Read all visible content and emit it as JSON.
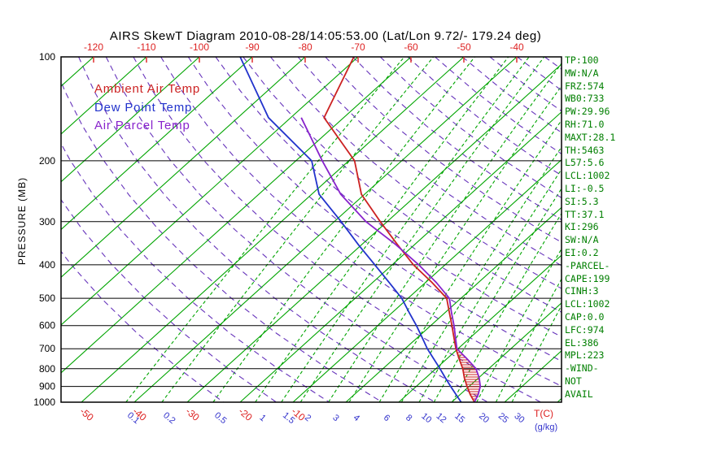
{
  "chart_data": {
    "type": "skewt-log-p",
    "title": "AIRS SkewT Diagram 2010-08-28/14:05:53.00 (Lat/Lon 9.72/- 179.24 deg)",
    "pressure_axis": {
      "label": "PRESSURE (MB)",
      "scale": "log",
      "range": [
        100,
        1000
      ],
      "ticks": [
        100,
        200,
        300,
        400,
        500,
        600,
        700,
        800,
        900,
        1000
      ]
    },
    "top_temp_ticks": [
      -120,
      -110,
      -100,
      -90,
      -80,
      -70,
      -60,
      -50,
      -40
    ],
    "bottom_temp_ticks": [
      -50,
      -40,
      -30,
      -20,
      -10
    ],
    "bottom_temp_unit": "T(C)",
    "mixing_ratio_ticks": [
      0.1,
      0.2,
      0.5,
      1,
      1.5,
      2,
      3,
      4,
      6,
      8,
      10,
      12,
      15,
      20,
      25,
      30
    ],
    "mixing_ratio_unit": "(g/kg)",
    "isotherm_step": 10,
    "colors": {
      "isotherm": "#00a400",
      "mixing_line": "#00a400",
      "dry_adiabat": "#6633bb",
      "temp_axis": "#dd2222",
      "mixing_label": "#3333cc",
      "stats_text": "#007f00",
      "hatch": "#cc2222"
    },
    "series": [
      {
        "name": "Ambient Air Temp",
        "data_name": "ambient-temp-curve",
        "color": "#cc2222",
        "points": [
          [
            1000,
            24.3
          ],
          [
            950,
            21.9
          ],
          [
            900,
            19.6
          ],
          [
            850,
            17.3
          ],
          [
            800,
            15.1
          ],
          [
            750,
            12.4
          ],
          [
            700,
            9.6
          ],
          [
            650,
            6.9
          ],
          [
            600,
            4.0
          ],
          [
            550,
            0.8
          ],
          [
            500,
            -2.7
          ],
          [
            450,
            -8.8
          ],
          [
            400,
            -16.0
          ],
          [
            350,
            -23.2
          ],
          [
            300,
            -31.3
          ],
          [
            250,
            -40.6
          ],
          [
            200,
            -48.9
          ],
          [
            150,
            -63.7
          ],
          [
            100,
            -70.8
          ]
        ]
      },
      {
        "name": "Dew Point Temp",
        "data_name": "dewpoint-curve",
        "color": "#2233cc",
        "points": [
          [
            1000,
            21.8
          ],
          [
            950,
            19.2
          ],
          [
            900,
            16.5
          ],
          [
            850,
            13.7
          ],
          [
            800,
            10.8
          ],
          [
            750,
            7.6
          ],
          [
            700,
            4.2
          ],
          [
            650,
            0.9
          ],
          [
            600,
            -2.7
          ],
          [
            550,
            -6.8
          ],
          [
            500,
            -11.2
          ],
          [
            450,
            -16.9
          ],
          [
            400,
            -23.3
          ],
          [
            350,
            -30.6
          ],
          [
            300,
            -38.7
          ],
          [
            250,
            -48.6
          ],
          [
            200,
            -57.0
          ],
          [
            150,
            -74.2
          ],
          [
            100,
            -92.3
          ]
        ]
      },
      {
        "name": "Air Parcel Temp",
        "data_name": "parcel-temp-curve",
        "color": "#8822cc",
        "points": [
          [
            1000,
            24.3
          ],
          [
            950,
            23.4
          ],
          [
            900,
            22.1
          ],
          [
            850,
            20.1
          ],
          [
            800,
            17.6
          ],
          [
            750,
            13.9
          ],
          [
            700,
            9.8
          ],
          [
            650,
            7.2
          ],
          [
            600,
            4.4
          ],
          [
            550,
            1.2
          ],
          [
            500,
            -2.2
          ],
          [
            450,
            -8.0
          ],
          [
            400,
            -15.0
          ],
          [
            350,
            -23.5
          ],
          [
            300,
            -34.0
          ],
          [
            250,
            -44.5
          ],
          [
            200,
            -55.0
          ],
          [
            150,
            -68.0
          ]
        ]
      }
    ],
    "hatch_region": {
      "between": [
        "Air Parcel Temp",
        "Ambient Air Temp"
      ],
      "pressure_range": [
        995,
        705
      ]
    }
  },
  "stats_panel": {
    "items": [
      "TP:100",
      "MW:N/A",
      "FRZ:574",
      "WB0:733",
      "PW:29.96",
      "RH:71.0",
      "MAXT:28.1",
      "TH:5463",
      "L57:5.6",
      "LCL:1002",
      "LI:-0.5",
      "SI:5.3",
      "TT:37.1",
      "KI:296",
      "SW:N/A",
      "EI:0.2",
      "-PARCEL-",
      "CAPE:199",
      "CINH:3",
      "LCL:1002",
      "CAP:0.0",
      "LFC:974",
      "EL:386",
      "MPL:223",
      "-WIND-",
      "NOT",
      "AVAIL"
    ]
  }
}
